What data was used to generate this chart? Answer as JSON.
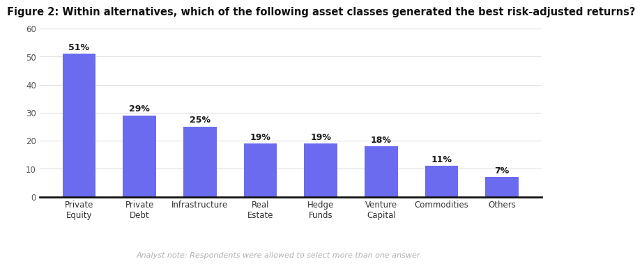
{
  "title": "Figure 2: Within alternatives, which of the following asset classes generated the best risk-adjusted returns?",
  "categories": [
    "Private\nEquity",
    "Private\nDebt",
    "Infrastructure",
    "Real\nEstate",
    "Hedge\nFunds",
    "Venture\nCapital",
    "Commodities",
    "Others"
  ],
  "values": [
    51,
    29,
    25,
    19,
    19,
    18,
    11,
    7
  ],
  "labels": [
    "51%",
    "29%",
    "25%",
    "19%",
    "19%",
    "18%",
    "11%",
    "7%"
  ],
  "bar_color": "#6B6BF0",
  "ylim": [
    0,
    60
  ],
  "yticks": [
    0,
    10,
    20,
    30,
    40,
    50,
    60
  ],
  "title_fontsize": 10.5,
  "label_fontsize": 9,
  "tick_fontsize": 8.5,
  "footnote": "Analyst note: Respondents were allowed to select more than one answer.",
  "footnote_color": "#b0b0b0",
  "background_color": "#ffffff",
  "grid_color": "#e0e0e0",
  "bar_width": 0.55
}
